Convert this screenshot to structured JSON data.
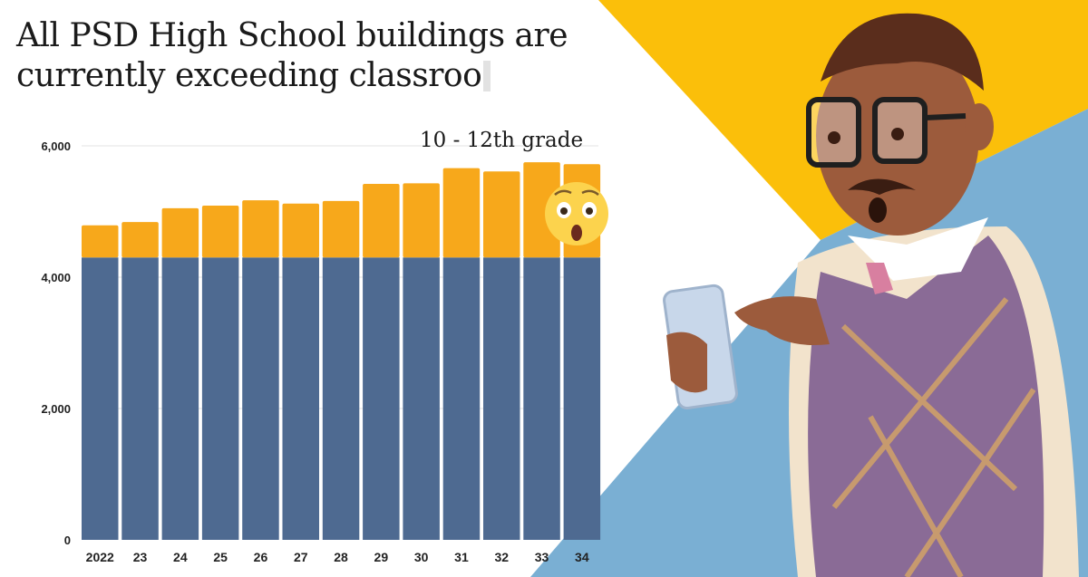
{
  "title_line1": "All PSD High School buildings are",
  "title_line2": "currently exceeding classroo",
  "colors": {
    "capacity": "#4e6a91",
    "excess": "#f7a81b",
    "yellow_bg": "#fbbf0a",
    "blue_bg": "#7aafd3"
  },
  "icons": {
    "emoji": "astonished-face-emoji",
    "character": "teacher-with-phone-illustration"
  },
  "chart_data": {
    "type": "bar",
    "stacked": true,
    "annotation": "10 - 12th grade",
    "categories": [
      "2022",
      "23",
      "24",
      "25",
      "26",
      "27",
      "28",
      "29",
      "30",
      "31",
      "32",
      "33",
      "34"
    ],
    "series": [
      {
        "values": [
          4300,
          4300,
          4300,
          4300,
          4300,
          4300,
          4300,
          4300,
          4300,
          4300,
          4300,
          4300,
          4300
        ],
        "color": "#4e6a91"
      },
      {
        "values": [
          490,
          540,
          750,
          790,
          870,
          820,
          860,
          1120,
          1130,
          1360,
          1310,
          1450,
          1420
        ],
        "color": "#f7a81b"
      }
    ],
    "totals": [
      4790,
      4840,
      5050,
      5090,
      5170,
      5120,
      5160,
      5420,
      5430,
      5660,
      5610,
      5750,
      5720
    ],
    "yticks": [
      {
        "v": 0,
        "label": "0"
      },
      {
        "v": 2000,
        "label": "2,000"
      },
      {
        "v": 4000,
        "label": "4,000"
      },
      {
        "v": 6000,
        "label": "6,000"
      }
    ],
    "ylim": [
      0,
      6000
    ],
    "grid": true
  }
}
